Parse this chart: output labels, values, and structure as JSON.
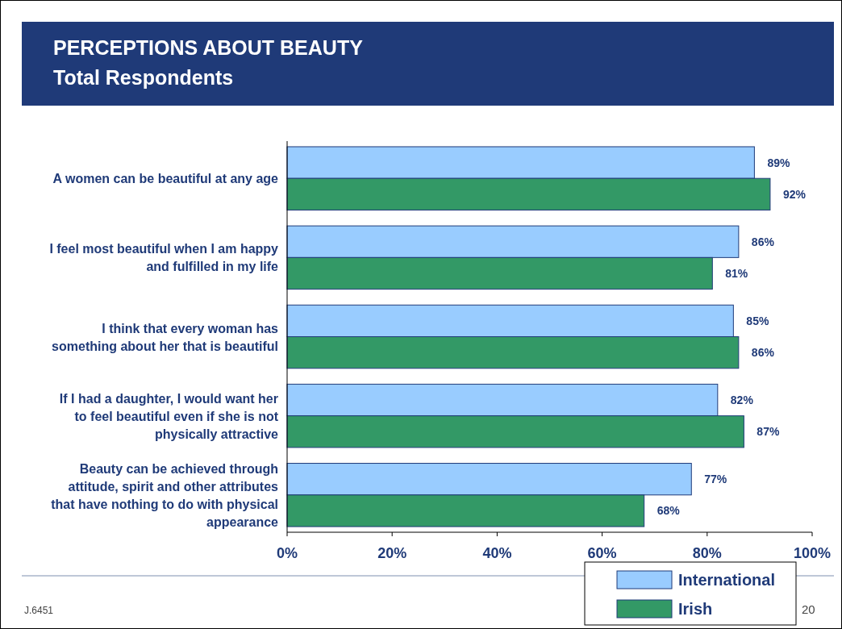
{
  "chart_data": {
    "type": "bar",
    "orientation": "horizontal",
    "title": "PERCEPTIONS ABOUT BEAUTY",
    "subtitle": "Total Respondents",
    "categories": [
      "A women can be beautiful at any age",
      "I feel most beautiful when I am happy and fulfilled in my life",
      "I think that every woman has something about her that is beautiful",
      "If I had a daughter, I would want her to feel beautiful even if she is not physically attractive",
      "Beauty can be achieved through attitude, spirit and other attributes that have nothing to do with physical appearance"
    ],
    "series": [
      {
        "name": "International",
        "color": "#99ccff",
        "values": [
          89,
          86,
          85,
          82,
          77
        ],
        "value_labels": [
          "89%",
          "86%",
          "85%",
          "82%",
          "77%"
        ]
      },
      {
        "name": "Irish",
        "color": "#339966",
        "values": [
          92,
          81,
          86,
          87,
          68
        ],
        "value_labels": [
          "92%",
          "81%",
          "86%",
          "87%",
          "68%"
        ]
      }
    ],
    "xlim": [
      0,
      100
    ],
    "xticks": [
      {
        "value": 0,
        "label": "0%"
      },
      {
        "value": 20,
        "label": "20%"
      },
      {
        "value": 40,
        "label": "40%"
      },
      {
        "value": 60,
        "label": "60%"
      },
      {
        "value": 80,
        "label": "80%"
      },
      {
        "value": 100,
        "label": "100%"
      }
    ],
    "legend": "bottom right",
    "grid": false,
    "annotations": [
      "J.6451",
      "20"
    ]
  }
}
